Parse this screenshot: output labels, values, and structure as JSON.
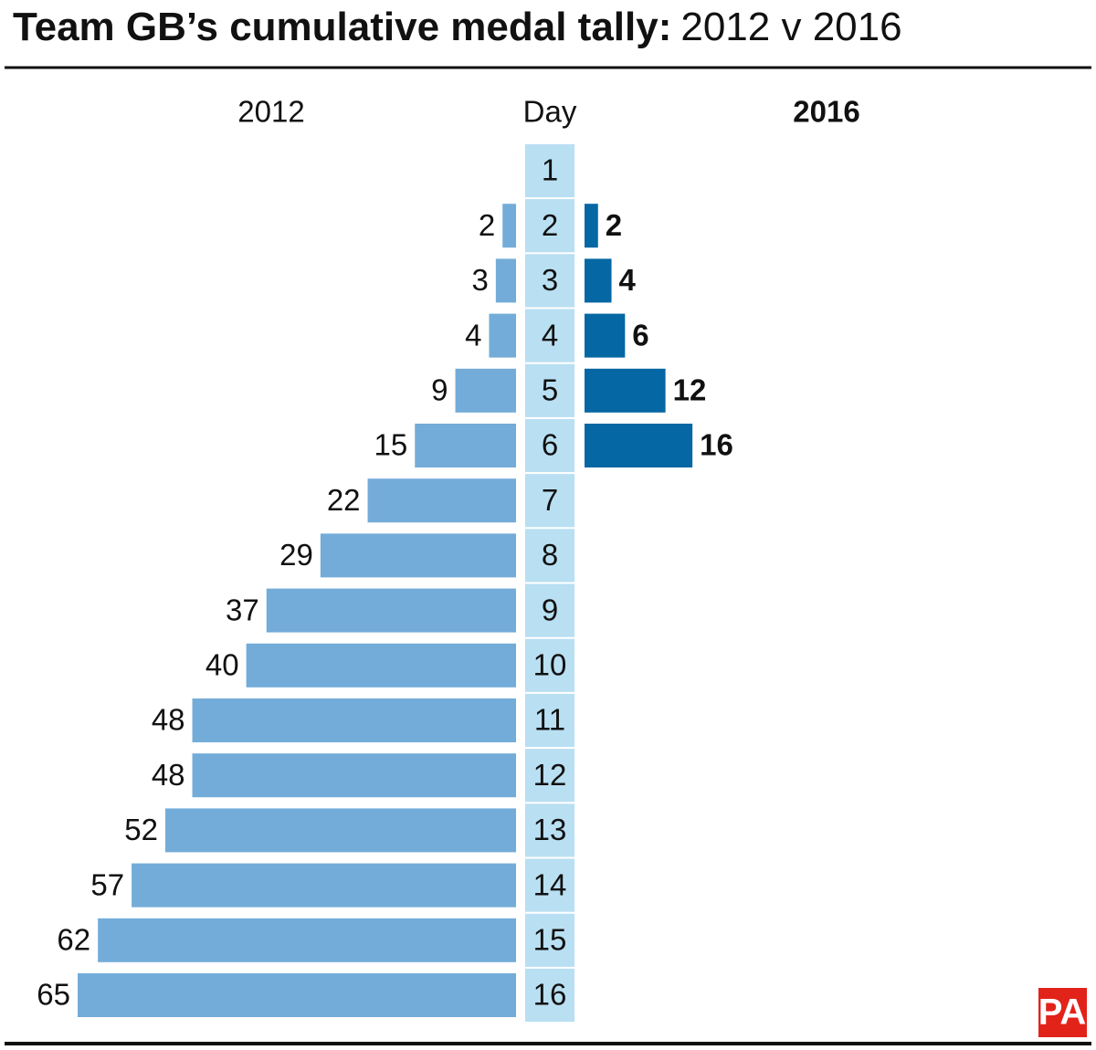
{
  "chart_data": {
    "type": "butterfly-bar",
    "title": [
      "Team GB’s cumulative medal tally:",
      "2012 v 2016"
    ],
    "category_label": "Day",
    "categories": [
      "1",
      "2",
      "3",
      "4",
      "5",
      "6",
      "7",
      "8",
      "9",
      "10",
      "11",
      "12",
      "13",
      "14",
      "15",
      "16"
    ],
    "series": [
      {
        "name": "2012",
        "color": "#73acd8",
        "values": [
          null,
          2,
          3,
          4,
          9,
          15,
          22,
          29,
          37,
          40,
          48,
          48,
          52,
          57,
          62,
          65
        ]
      },
      {
        "name": "2016",
        "color": "#0567a3",
        "values": [
          null,
          2,
          4,
          6,
          12,
          16,
          null,
          null,
          null,
          null,
          null,
          null,
          null,
          null,
          null,
          null
        ]
      }
    ],
    "xlim": [
      0,
      65
    ],
    "logo": "PA"
  }
}
